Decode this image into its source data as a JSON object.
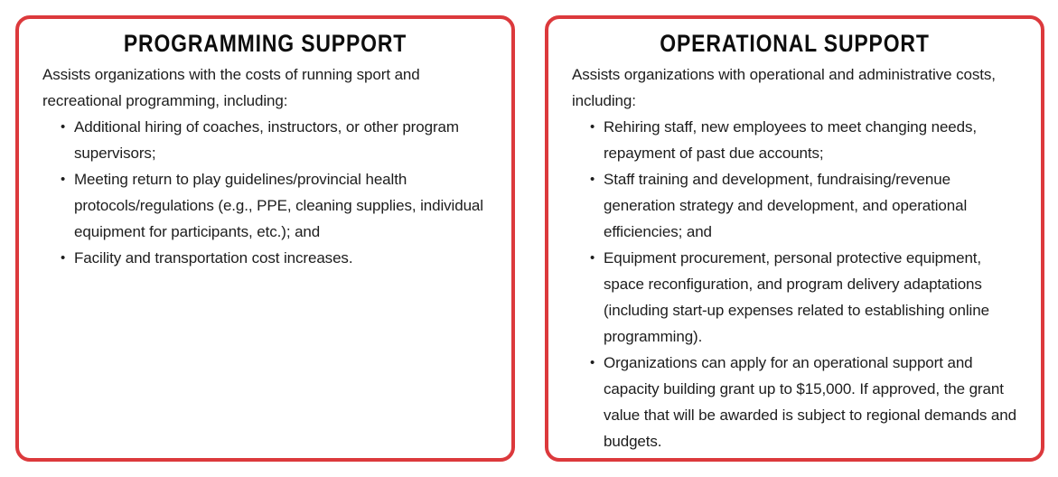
{
  "theme": {
    "border_color": "#dc393c",
    "text_color": "#1d1d1d",
    "background": "#ffffff",
    "bullet_glyph": "•"
  },
  "cards": [
    {
      "title": "PROGRAMMING SUPPORT",
      "intro": "Assists organizations with the costs of running sport and recreational programming, including:",
      "bullets": [
        "Additional hiring of coaches, instructors, or other program supervisors;",
        "Meeting return to play guidelines/provincial health protocols/regulations (e.g., PPE, cleaning supplies, individual equipment for participants, etc.); and",
        "Facility and transportation cost increases."
      ]
    },
    {
      "title": "OPERATIONAL SUPPORT",
      "intro": "Assists organizations with operational and administrative costs, including:",
      "bullets": [
        "Rehiring staff, new employees to meet changing needs, repayment of past due accounts;",
        "Staff training and development, fundraising/revenue generation strategy and development, and operational efficiencies; and",
        "Equipment procurement, personal protective equipment, space reconfiguration, and program delivery adaptations (including start-up expenses related to establishing online programming).",
        "Organizations can apply for an operational support and capacity building grant up to $15,000. If approved, the grant value that will be awarded is subject to regional demands and budgets."
      ]
    }
  ]
}
